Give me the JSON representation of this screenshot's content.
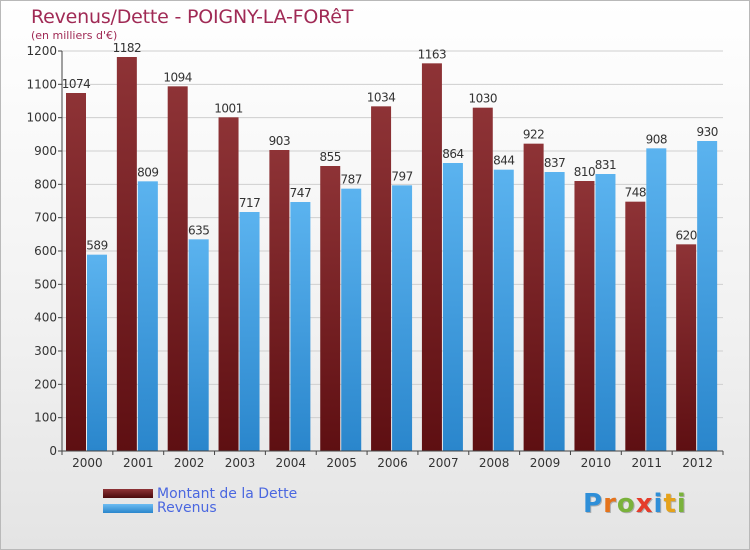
{
  "header": {
    "title": "Revenus/Dette - POIGNY-LA-FORêT",
    "subtitle": "(en milliers d'€)"
  },
  "legend": {
    "debt_label": "Montant de la Dette",
    "revenue_label": "Revenus"
  },
  "logo": {
    "text": "Proxiti"
  },
  "colors": {
    "debt": "#7a1c1e",
    "revenue": "#3d9ee3",
    "title": "#a02a55",
    "legend_text": "#4a67e0"
  },
  "chart_data": {
    "type": "bar",
    "title": "Revenus/Dette - POIGNY-LA-FORêT",
    "subtitle": "(en milliers d'€)",
    "categories": [
      "2000",
      "2001",
      "2002",
      "2003",
      "2004",
      "2005",
      "2006",
      "2007",
      "2008",
      "2009",
      "2010",
      "2011",
      "2012"
    ],
    "series": [
      {
        "name": "Montant de la Dette",
        "values": [
          1074,
          1182,
          1094,
          1001,
          903,
          855,
          1034,
          1163,
          1030,
          922,
          810,
          748,
          620
        ]
      },
      {
        "name": "Revenus",
        "values": [
          589,
          809,
          635,
          717,
          747,
          787,
          797,
          864,
          844,
          837,
          831,
          908,
          930
        ]
      }
    ],
    "ylim": [
      0,
      1200
    ],
    "yticks": [
      0,
      100,
      200,
      300,
      400,
      500,
      600,
      700,
      800,
      900,
      1000,
      1100,
      1200
    ],
    "grid": true,
    "legend_position": "bottom-left"
  }
}
